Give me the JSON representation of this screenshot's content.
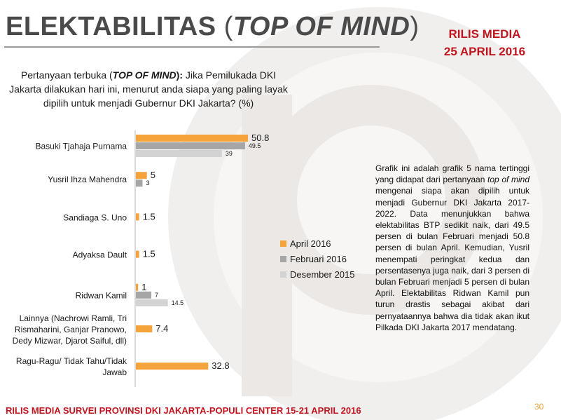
{
  "header": {
    "title_main": "ELEKTABILITAS",
    "title_open_paren": "(",
    "title_italic": "TOP OF MIND",
    "title_close_paren": ")",
    "release_line1": "RILIS MEDIA",
    "release_line2": "25 APRIL 2016"
  },
  "question": {
    "lead": "Pertanyaan terbuka (",
    "lead_italic": "TOP OF MIND",
    "lead_close": "):",
    "body": " Jika Pemilukada DKI Jakarta dilakukan hari ini, menurut anda siapa yang paling layak dipilih untuk menjadi Gubernur DKI Jakarta? (%)"
  },
  "description": {
    "part1": "Grafik ini adalah grafik 5 nama tertinggi yang didapat dari pertanyaan ",
    "italic": "top of mind",
    "part2": " mengenai siapa akan dipilih untuk menjadi Gubernur DKI Jakarta 2017-2022. Data menunjukkan bahwa elektabilitas BTP sedikit naik, dari 49.5 persen di bulan Februari menjadi 50.8 persen di bulan April. Kemudian, Yusril menempati peringkat kedua dan persentasenya juga naik, dari 3 persen di bulan Februari menjadi 5 persen di bulan April. Elektabilitas Ridwan Kamil pun turun drastis sebagai akibat dari pernyataannya bahwa dia tidak akan ikut Pilkada DKI Jakarta 2017 mendatang."
  },
  "footer": {
    "text": "RILIS MEDIA SURVEI PROVINSI DKI JAKARTA-POPULI CENTER 15-21 APRIL 2016",
    "page_number": "30"
  },
  "colors": {
    "april": "#f5a33b",
    "februari": "#a6a6a6",
    "desember": "#d3d3d3",
    "accent_red": "#c0151e"
  },
  "chart_data": {
    "type": "bar",
    "orientation": "horizontal",
    "categories": [
      [
        "Basuki Tjahaja Purnama"
      ],
      [
        "Yusril Ihza Mahendra"
      ],
      [
        "Sandiaga S. Uno"
      ],
      [
        "Adyaksa Dault"
      ],
      [
        "Ridwan Kamil"
      ],
      [
        "Lainnya (Nachrowi Ramli, Tri",
        "Rismaharini, Ganjar Pranowo,",
        "Dedy Mizwar, Djarot Saiful, dll)"
      ],
      [
        "Ragu-Ragu/ Tidak Tahu/Tidak",
        "Jawab"
      ]
    ],
    "series": [
      {
        "name": "April 2016",
        "values": [
          50.8,
          5,
          1.5,
          1.5,
          1,
          7.4,
          32.8
        ],
        "labels": [
          "50.8",
          "5",
          "1.5",
          "1.5",
          "1",
          "7.4",
          "32.8"
        ]
      },
      {
        "name": "Februari 2016",
        "values": [
          49.5,
          3,
          null,
          null,
          7,
          null,
          null
        ],
        "labels": [
          "49.5",
          "3",
          "",
          "",
          "7",
          "",
          ""
        ]
      },
      {
        "name": "Desember 2015",
        "values": [
          39,
          null,
          null,
          null,
          14.5,
          null,
          null
        ],
        "labels": [
          "39",
          "",
          "",
          "",
          "14.5",
          "",
          ""
        ]
      }
    ],
    "xlim": [
      0,
      60
    ],
    "legend_position": "right"
  }
}
